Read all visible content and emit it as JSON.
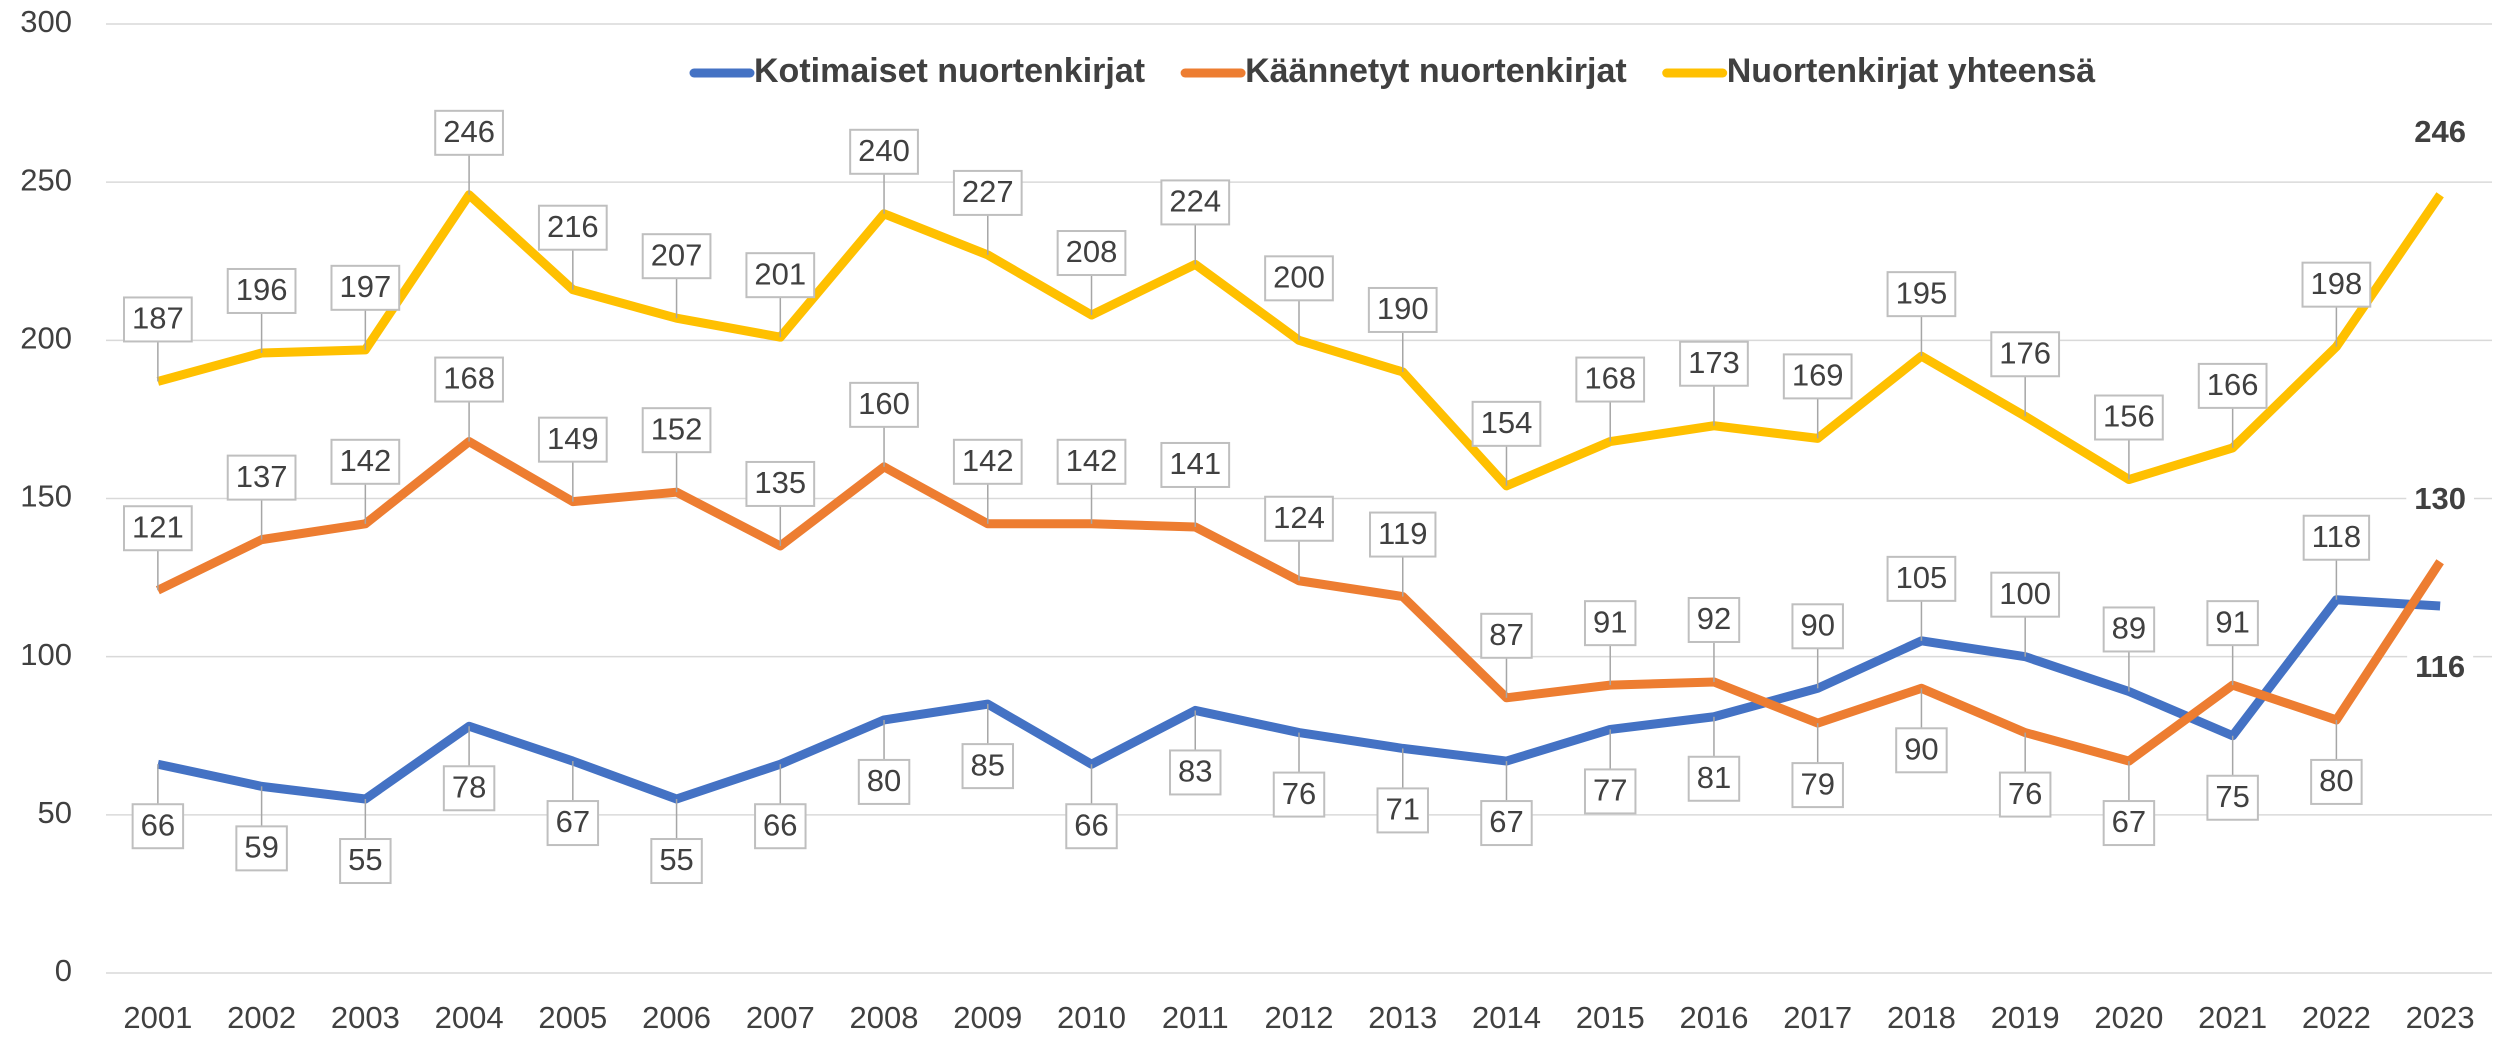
{
  "chart_data": {
    "type": "line",
    "categories": [
      "2001",
      "2002",
      "2003",
      "2004",
      "2005",
      "2006",
      "2007",
      "2008",
      "2009",
      "2010",
      "2011",
      "2012",
      "2013",
      "2014",
      "2015",
      "2016",
      "2017",
      "2018",
      "2019",
      "2020",
      "2021",
      "2022",
      "2023"
    ],
    "series": [
      {
        "name": "Kotimaiset nuortenkirjat",
        "color": "#4472c4",
        "values": [
          66,
          59,
          55,
          78,
          67,
          55,
          66,
          80,
          85,
          66,
          83,
          76,
          71,
          67,
          77,
          81,
          90,
          105,
          100,
          89,
          75,
          118,
          116
        ]
      },
      {
        "name": "Käännetyt nuortenkirjat",
        "color": "#ed7d31",
        "values": [
          121,
          137,
          142,
          168,
          149,
          152,
          135,
          160,
          142,
          142,
          141,
          124,
          119,
          87,
          91,
          92,
          79,
          90,
          76,
          67,
          91,
          80,
          130
        ]
      },
      {
        "name": "Nuortenkirjat yhteensä",
        "color": "#ffc000",
        "values": [
          187,
          196,
          197,
          246,
          216,
          207,
          201,
          240,
          227,
          208,
          224,
          200,
          190,
          154,
          168,
          173,
          169,
          195,
          176,
          156,
          166,
          198,
          246
        ]
      }
    ],
    "ylim": [
      0,
      300
    ],
    "yticks": [
      0,
      50,
      100,
      150,
      200,
      250,
      300
    ],
    "grid": true,
    "legend": "top"
  }
}
